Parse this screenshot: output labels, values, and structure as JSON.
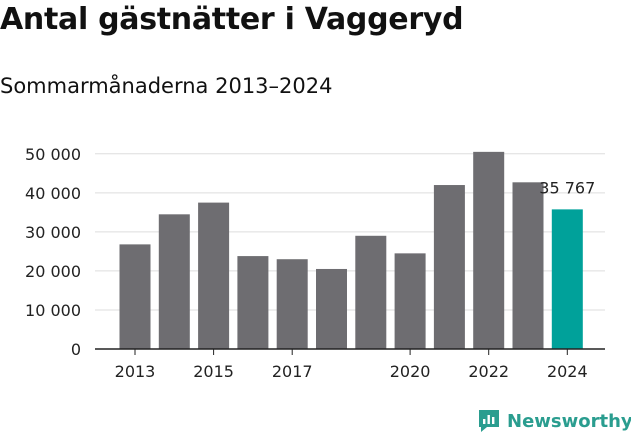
{
  "title": "Antal gästnätter i Vaggeryd",
  "subtitle": "Sommarmånaderna 2013–2024",
  "brand": "Newsworthy",
  "colors": {
    "bar": "#6e6d71",
    "highlight": "#00a19a",
    "grid": "#dddddd",
    "axis": "#222222",
    "brand": "#2a9d8f"
  },
  "chart_data": {
    "type": "bar",
    "categories": [
      "2013",
      "2014",
      "2015",
      "2016",
      "2017",
      "2018",
      "2019",
      "2020",
      "2021",
      "2022",
      "2023",
      "2024"
    ],
    "values": [
      26800,
      34500,
      37500,
      23800,
      23000,
      20500,
      29000,
      24500,
      42000,
      50500,
      42700,
      35767
    ],
    "x_tick_labels": [
      "2013",
      "",
      "2015",
      "",
      "2017",
      "",
      "",
      "2020",
      "",
      "2022",
      "",
      "2024"
    ],
    "y_ticks": [
      0,
      10000,
      20000,
      30000,
      40000,
      50000
    ],
    "y_tick_labels": [
      "0",
      "10 000",
      "20 000",
      "30 000",
      "40 000",
      "50 000"
    ],
    "ylim": [
      0,
      52000
    ],
    "highlight_index": 11,
    "highlight_label": "35 767",
    "grid": true,
    "xlabel": "",
    "ylabel": ""
  }
}
